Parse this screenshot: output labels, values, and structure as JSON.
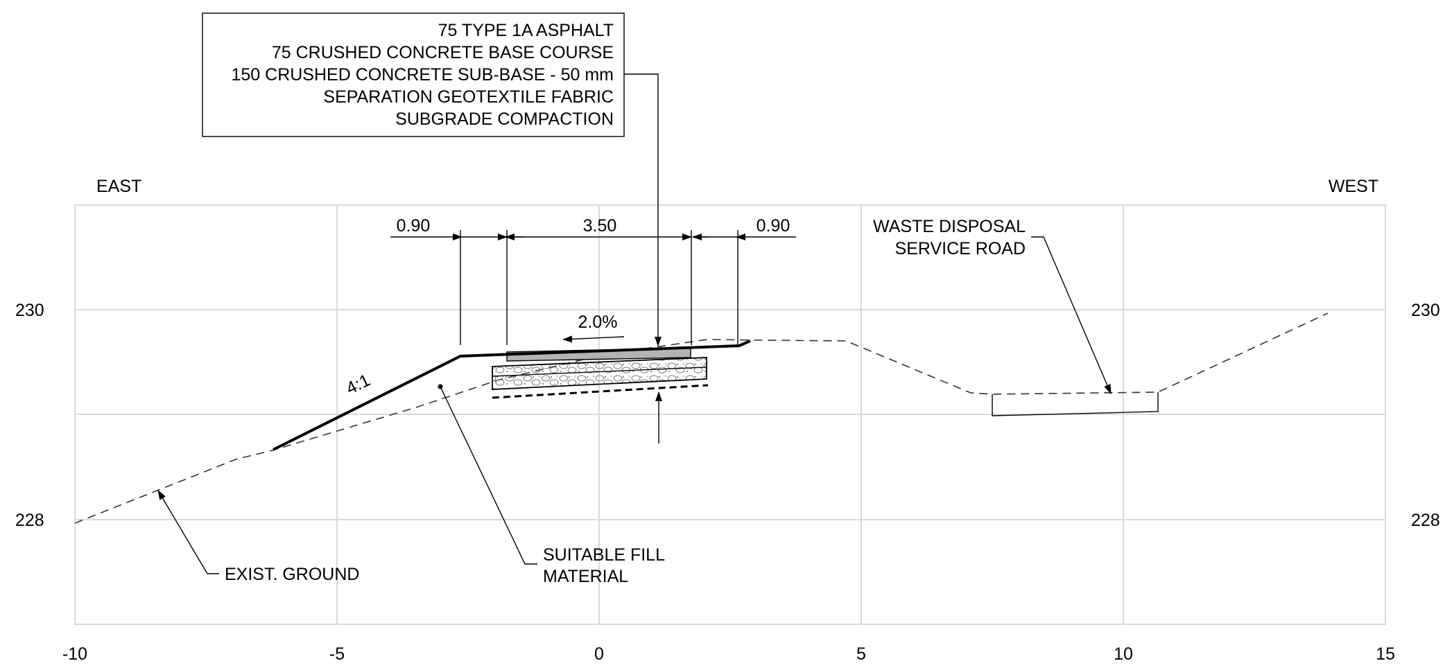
{
  "layer_callout": {
    "lines": [
      "75 TYPE 1A ASPHALT",
      "75 CRUSHED CONCRETE BASE COURSE",
      "150 CRUSHED CONCRETE SUB-BASE - 50 mm",
      "SEPARATION GEOTEXTILE FABRIC",
      "SUBGRADE COMPACTION"
    ]
  },
  "direction_labels": {
    "left": "EAST",
    "right": "WEST"
  },
  "x_axis": {
    "min": -10,
    "max": 15,
    "ticks": [
      "-10",
      "-5",
      "0",
      "5",
      "10",
      "15"
    ]
  },
  "y_axis": {
    "min": 227,
    "max": 231,
    "ticks": [
      "230",
      "228"
    ]
  },
  "dimensions": [
    "0.90",
    "3.50",
    "0.90"
  ],
  "cross_slope": "2.0%",
  "fill_slope": "4:1",
  "labels": {
    "waste_road": [
      "WASTE DISPOSAL",
      "SERVICE ROAD"
    ],
    "exist_ground": "EXIST. GROUND",
    "fill_material": [
      "SUITABLE FILL",
      "MATERIAL"
    ]
  },
  "colors": {
    "grid": "#d9d9d9",
    "asphalt": "#b3b3b3",
    "line": "#000000"
  }
}
